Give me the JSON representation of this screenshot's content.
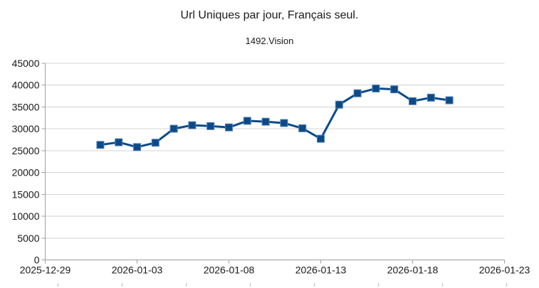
{
  "chart_data": {
    "type": "line",
    "title": "Url Uniques par jour, Français seul.",
    "subtitle": "1492.Vision",
    "xlabel": "",
    "ylabel": "",
    "ylim": [
      0,
      45000
    ],
    "y_ticks": [
      0,
      5000,
      10000,
      15000,
      20000,
      25000,
      30000,
      35000,
      40000,
      45000
    ],
    "x_range": [
      "2025-12-29",
      "2026-01-23"
    ],
    "x_ticks": [
      "2025-12-29",
      "2026-01-03",
      "2026-01-08",
      "2026-01-13",
      "2026-01-18",
      "2026-01-23"
    ],
    "grid": "horizontal-only",
    "legend": "none",
    "marker": "filled-square",
    "series": [
      {
        "x": [
          "2026-01-01",
          "2026-01-02",
          "2026-01-03",
          "2026-01-04",
          "2026-01-05",
          "2026-01-06",
          "2026-01-07",
          "2026-01-08",
          "2026-01-09",
          "2026-01-10",
          "2026-01-11",
          "2026-01-12",
          "2026-01-13",
          "2026-01-14",
          "2026-01-15",
          "2026-01-16",
          "2026-01-17",
          "2026-01-18",
          "2026-01-19",
          "2026-01-20"
        ],
        "values": [
          26300,
          26900,
          25800,
          26800,
          30000,
          30800,
          30600,
          30300,
          31800,
          31600,
          31300,
          30100,
          27700,
          35500,
          38100,
          39200,
          39000,
          36300,
          37100,
          36500
        ]
      }
    ],
    "colors": {
      "series": "#0b4a8a",
      "marker_edge": "#5580ae",
      "gridline": "#d3d3d3",
      "axis": "#a0a0a0",
      "text": "#1a1a1a"
    }
  },
  "artifacts": {
    "bottom_cutoff_ticks": {
      "count": 8,
      "description": "tops of light-gray tick marks of a following element, cut off at the bottom edge of the image"
    }
  }
}
